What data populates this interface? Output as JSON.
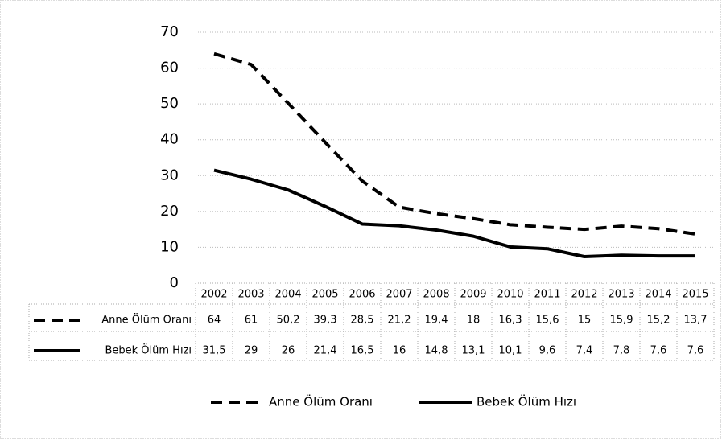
{
  "chart_data": {
    "type": "line",
    "categories": [
      "2002",
      "2003",
      "2004",
      "2005",
      "2006",
      "2007",
      "2008",
      "2009",
      "2010",
      "2011",
      "2012",
      "2013",
      "2014",
      "2015"
    ],
    "series": [
      {
        "name": "Anne Ölüm Oranı",
        "color": "#000000",
        "style": "dashed",
        "values": [
          64,
          61,
          50.2,
          39.3,
          28.5,
          21.2,
          19.4,
          18,
          16.3,
          15.6,
          15,
          15.9,
          15.2,
          13.7
        ],
        "value_labels": [
          "64",
          "61",
          "50,2",
          "39,3",
          "28,5",
          "21,2",
          "19,4",
          "18",
          "16,3",
          "15,6",
          "15",
          "15,9",
          "15,2",
          "13,7"
        ]
      },
      {
        "name": "Bebek Ölüm Hızı",
        "color": "#000000",
        "style": "solid",
        "values": [
          31.5,
          29,
          26,
          21.4,
          16.5,
          16,
          14.8,
          13.1,
          10.1,
          9.6,
          7.4,
          7.8,
          7.6,
          7.6
        ],
        "value_labels": [
          "31,5",
          "29",
          "26",
          "21,4",
          "16,5",
          "16",
          "14,8",
          "13,1",
          "10,1",
          "9,6",
          "7,4",
          "7,8",
          "7,6",
          "7,6"
        ]
      }
    ],
    "ylim": [
      0,
      70
    ],
    "yticks": [
      0,
      10,
      20,
      30,
      40,
      50,
      60,
      70
    ],
    "grid": true,
    "legend": "bottom"
  }
}
